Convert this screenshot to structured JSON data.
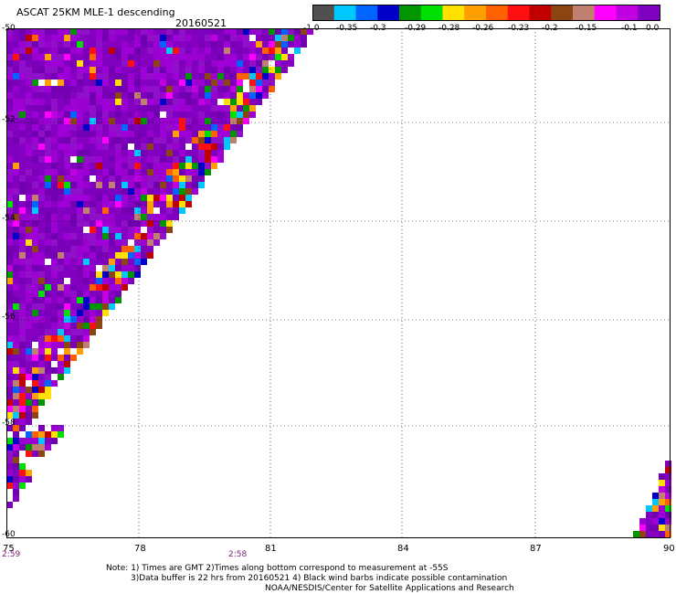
{
  "header": {
    "title": "ASCAT 25KM MLE-1 descending",
    "date": "20160521"
  },
  "colorbar": {
    "colors": [
      "#505050",
      "#00c8ff",
      "#0064ff",
      "#0000c8",
      "#009600",
      "#00e000",
      "#ffe000",
      "#ffa000",
      "#ff6000",
      "#ff1010",
      "#c00000",
      "#8b4513",
      "#c08070",
      "#ff00ff",
      "#c000e0",
      "#8000c0"
    ],
    "labels": [
      "-1.0",
      "-0.35",
      "-0.3",
      "-0.29",
      "-0.28",
      "-0.26",
      "-0.23",
      "-0.2",
      "-0.15",
      "-0.1",
      "0.0"
    ]
  },
  "map": {
    "lat_labels": [
      "-50",
      "-52",
      "-54",
      "-56",
      "-58",
      "-60"
    ],
    "lon_labels": [
      "75",
      "78",
      "81",
      "84",
      "87",
      "90"
    ],
    "time_labels": [
      "2:59",
      "2:58"
    ]
  },
  "notes": {
    "line1": "Note: 1) Times are GMT 2)Times along bottom correspond to measurement at -55S",
    "line2": "3)Data buffer is 22 hrs from 20160521 4) Black wind barbs indicate possible contamination",
    "line3": "NOAA/NESDIS/Center for Satellite Applications and Research"
  }
}
